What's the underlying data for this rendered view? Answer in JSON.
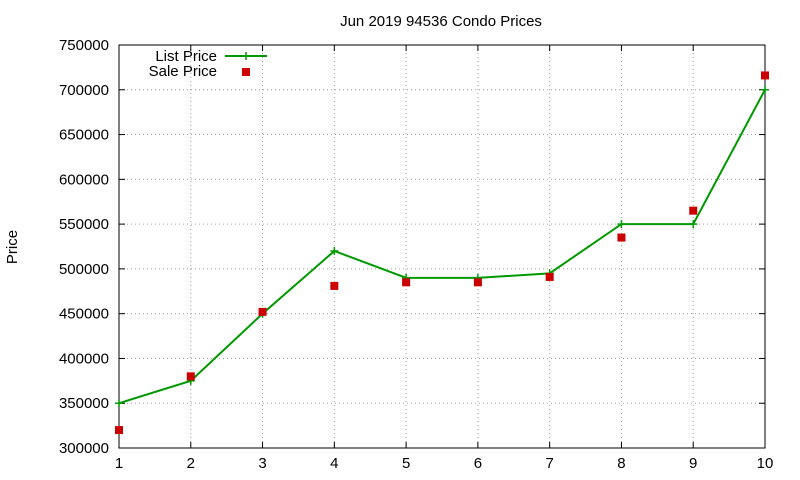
{
  "chart_data": {
    "type": "line",
    "title": "Jun 2019 94536 Condo Prices",
    "xlabel": "",
    "ylabel": "Price",
    "x": [
      1,
      2,
      3,
      4,
      5,
      6,
      7,
      8,
      9,
      10
    ],
    "xlim": [
      1,
      10
    ],
    "ylim": [
      300000,
      750000
    ],
    "y_ticks": [
      300000,
      350000,
      400000,
      450000,
      500000,
      550000,
      600000,
      650000,
      700000,
      750000
    ],
    "x_ticks": [
      1,
      2,
      3,
      4,
      5,
      6,
      7,
      8,
      9,
      10
    ],
    "grid": true,
    "legend_position": "top-left",
    "series": [
      {
        "name": "List Price",
        "style": "linespoints",
        "marker": "plus",
        "color": "#009900",
        "values": [
          350000,
          375000,
          450000,
          520000,
          490000,
          490000,
          495000,
          550000,
          550000,
          700000
        ]
      },
      {
        "name": "Sale Price",
        "style": "points",
        "marker": "square",
        "color": "#cc0000",
        "values": [
          320000,
          380000,
          452000,
          481000,
          485000,
          485000,
          491000,
          535000,
          565000,
          716000
        ]
      }
    ]
  }
}
